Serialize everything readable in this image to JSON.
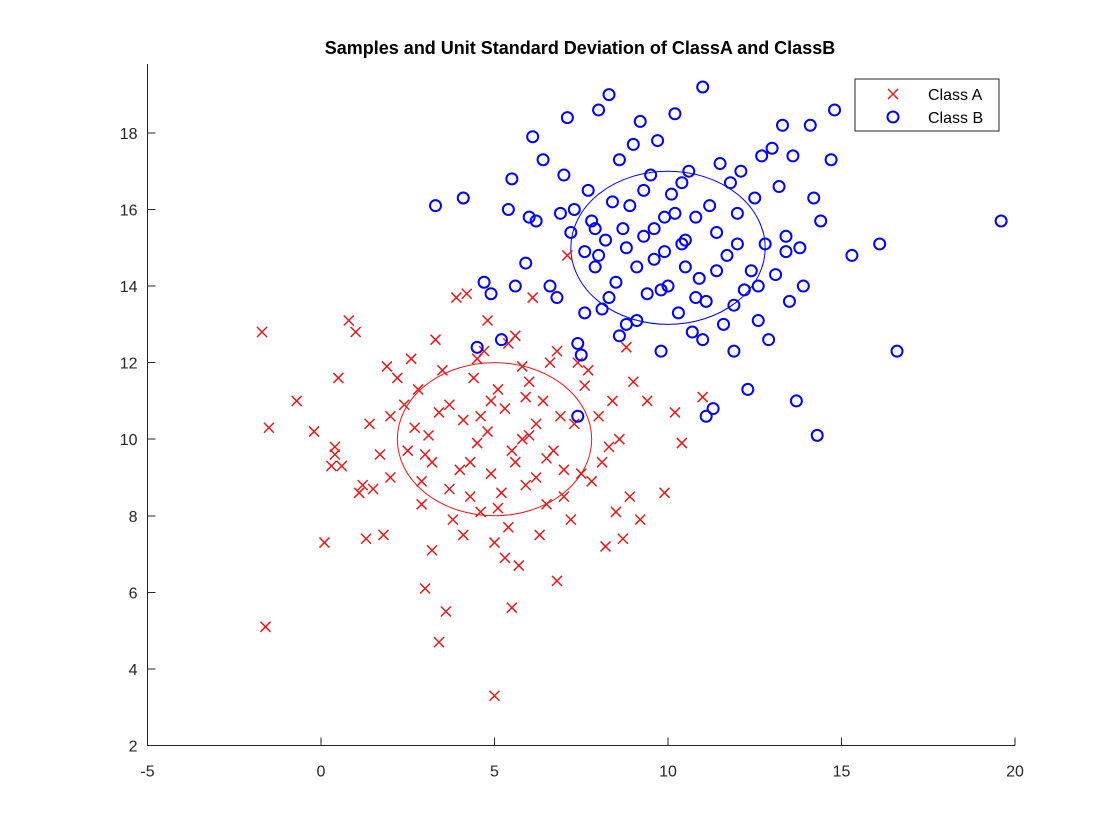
{
  "chart_data": {
    "type": "scatter",
    "title": "Samples and Unit Standard Deviation of ClassA and ClassB",
    "xlabel": "",
    "ylabel": "",
    "xlim": [
      -5,
      20
    ],
    "ylim": [
      2,
      19.8
    ],
    "xticks": [
      -5,
      0,
      5,
      10,
      15,
      20
    ],
    "yticks": [
      2,
      4,
      6,
      8,
      10,
      12,
      14,
      16,
      18
    ],
    "grid": false,
    "box": false,
    "legend": {
      "position": "top-right",
      "entries": [
        "Class A",
        "Class B"
      ]
    },
    "series": [
      {
        "name": "Class A",
        "marker": "x",
        "color": "#e41a1c",
        "points": [
          [
            -1.7,
            12.8
          ],
          [
            -1.6,
            5.1
          ],
          [
            -1.5,
            10.3
          ],
          [
            -0.7,
            11.0
          ],
          [
            -0.2,
            10.2
          ],
          [
            0.1,
            7.3
          ],
          [
            0.3,
            9.3
          ],
          [
            0.4,
            9.8
          ],
          [
            0.5,
            11.6
          ],
          [
            0.6,
            9.3
          ],
          [
            0.8,
            13.1
          ],
          [
            1.0,
            12.8
          ],
          [
            1.1,
            8.6
          ],
          [
            1.2,
            8.8
          ],
          [
            1.3,
            7.4
          ],
          [
            1.4,
            10.4
          ],
          [
            1.5,
            8.7
          ],
          [
            1.7,
            9.6
          ],
          [
            1.9,
            11.9
          ],
          [
            2.0,
            10.6
          ],
          [
            2.2,
            11.6
          ],
          [
            2.4,
            10.9
          ],
          [
            2.5,
            9.7
          ],
          [
            2.6,
            12.1
          ],
          [
            2.7,
            10.3
          ],
          [
            2.8,
            11.3
          ],
          [
            2.9,
            8.9
          ],
          [
            3.0,
            6.1
          ],
          [
            3.1,
            10.1
          ],
          [
            3.2,
            7.1
          ],
          [
            3.2,
            9.4
          ],
          [
            3.3,
            12.6
          ],
          [
            3.4,
            4.7
          ],
          [
            3.5,
            11.8
          ],
          [
            3.6,
            5.5
          ],
          [
            3.7,
            10.9
          ],
          [
            3.8,
            7.9
          ],
          [
            3.9,
            13.7
          ],
          [
            4.0,
            9.2
          ],
          [
            4.1,
            10.5
          ],
          [
            4.2,
            13.8
          ],
          [
            4.3,
            8.5
          ],
          [
            4.4,
            11.6
          ],
          [
            4.5,
            9.9
          ],
          [
            4.6,
            8.1
          ],
          [
            4.7,
            12.3
          ],
          [
            4.8,
            10.2
          ],
          [
            4.9,
            9.1
          ],
          [
            5.0,
            7.3
          ],
          [
            5.0,
            3.3
          ],
          [
            5.1,
            11.3
          ],
          [
            5.2,
            8.6
          ],
          [
            5.3,
            10.8
          ],
          [
            5.4,
            7.7
          ],
          [
            5.4,
            12.5
          ],
          [
            5.5,
            5.6
          ],
          [
            5.6,
            9.4
          ],
          [
            5.7,
            6.7
          ],
          [
            5.8,
            11.9
          ],
          [
            5.9,
            8.8
          ],
          [
            6.0,
            10.1
          ],
          [
            6.1,
            13.7
          ],
          [
            6.2,
            9.0
          ],
          [
            6.3,
            7.5
          ],
          [
            6.4,
            11.0
          ],
          [
            6.5,
            8.3
          ],
          [
            6.6,
            12.0
          ],
          [
            6.7,
            9.7
          ],
          [
            6.8,
            6.3
          ],
          [
            6.9,
            10.6
          ],
          [
            7.0,
            8.5
          ],
          [
            7.1,
            14.8
          ],
          [
            7.2,
            7.9
          ],
          [
            7.3,
            10.4
          ],
          [
            7.4,
            12.0
          ],
          [
            7.5,
            9.1
          ],
          [
            7.6,
            11.4
          ],
          [
            7.8,
            8.9
          ],
          [
            8.0,
            10.6
          ],
          [
            8.1,
            9.4
          ],
          [
            8.2,
            7.2
          ],
          [
            8.4,
            11.0
          ],
          [
            8.5,
            8.1
          ],
          [
            8.6,
            10.0
          ],
          [
            8.7,
            7.4
          ],
          [
            8.8,
            12.4
          ],
          [
            8.9,
            8.5
          ],
          [
            9.0,
            11.5
          ],
          [
            9.2,
            7.9
          ],
          [
            9.4,
            11.0
          ],
          [
            9.9,
            8.6
          ],
          [
            10.2,
            10.7
          ],
          [
            10.4,
            9.9
          ],
          [
            11.0,
            11.1
          ],
          [
            4.3,
            9.4
          ],
          [
            5.8,
            10.0
          ],
          [
            6.2,
            10.4
          ],
          [
            3.7,
            8.7
          ],
          [
            4.9,
            11.0
          ],
          [
            5.5,
            9.7
          ],
          [
            6.5,
            9.5
          ],
          [
            4.6,
            10.6
          ],
          [
            5.1,
            8.2
          ],
          [
            3.4,
            10.7
          ],
          [
            6.0,
            11.5
          ],
          [
            2.9,
            8.3
          ],
          [
            7.0,
            9.2
          ],
          [
            5.3,
            6.9
          ],
          [
            4.1,
            7.5
          ],
          [
            6.8,
            12.3
          ],
          [
            0.4,
            9.6
          ],
          [
            2.0,
            9.0
          ],
          [
            5.9,
            11.1
          ],
          [
            4.5,
            12.1
          ],
          [
            3.0,
            9.6
          ],
          [
            7.7,
            11.8
          ],
          [
            1.8,
            7.5
          ],
          [
            5.6,
            12.7
          ],
          [
            8.3,
            9.8
          ],
          [
            4.8,
            13.1
          ]
        ]
      },
      {
        "name": "Class B",
        "marker": "o",
        "color": "#0000ff",
        "points": [
          [
            3.3,
            16.1
          ],
          [
            4.1,
            16.3
          ],
          [
            4.5,
            12.4
          ],
          [
            4.7,
            14.1
          ],
          [
            4.9,
            13.8
          ],
          [
            5.2,
            12.6
          ],
          [
            5.4,
            16.0
          ],
          [
            5.5,
            16.8
          ],
          [
            5.6,
            14.0
          ],
          [
            5.9,
            14.6
          ],
          [
            6.0,
            15.8
          ],
          [
            6.1,
            17.9
          ],
          [
            6.2,
            15.7
          ],
          [
            6.4,
            17.3
          ],
          [
            6.6,
            14.0
          ],
          [
            6.8,
            13.7
          ],
          [
            6.9,
            15.9
          ],
          [
            7.0,
            16.9
          ],
          [
            7.1,
            18.4
          ],
          [
            7.2,
            15.4
          ],
          [
            7.3,
            16.0
          ],
          [
            7.4,
            12.5
          ],
          [
            7.5,
            12.2
          ],
          [
            7.6,
            14.9
          ],
          [
            7.7,
            16.5
          ],
          [
            7.8,
            15.7
          ],
          [
            7.9,
            14.5
          ],
          [
            8.0,
            18.6
          ],
          [
            8.1,
            13.4
          ],
          [
            8.2,
            15.2
          ],
          [
            8.3,
            19.0
          ],
          [
            8.4,
            16.2
          ],
          [
            8.5,
            14.1
          ],
          [
            8.6,
            17.3
          ],
          [
            8.7,
            15.5
          ],
          [
            8.8,
            13.0
          ],
          [
            8.9,
            16.1
          ],
          [
            9.0,
            17.7
          ],
          [
            9.1,
            14.5
          ],
          [
            9.2,
            18.3
          ],
          [
            9.3,
            15.3
          ],
          [
            9.4,
            13.8
          ],
          [
            9.5,
            16.9
          ],
          [
            9.6,
            14.7
          ],
          [
            9.7,
            17.8
          ],
          [
            9.8,
            12.3
          ],
          [
            9.9,
            15.8
          ],
          [
            10.0,
            14.0
          ],
          [
            10.1,
            16.4
          ],
          [
            10.2,
            18.5
          ],
          [
            10.3,
            13.3
          ],
          [
            10.4,
            15.1
          ],
          [
            10.5,
            14.5
          ],
          [
            10.6,
            17.0
          ],
          [
            10.7,
            12.8
          ],
          [
            10.8,
            15.8
          ],
          [
            10.9,
            14.2
          ],
          [
            11.0,
            19.2
          ],
          [
            11.1,
            13.6
          ],
          [
            11.2,
            16.1
          ],
          [
            11.3,
            10.8
          ],
          [
            11.4,
            15.4
          ],
          [
            11.5,
            17.2
          ],
          [
            11.6,
            13.0
          ],
          [
            11.7,
            14.8
          ],
          [
            11.8,
            16.7
          ],
          [
            11.9,
            12.3
          ],
          [
            12.0,
            15.1
          ],
          [
            12.1,
            17.0
          ],
          [
            12.2,
            13.9
          ],
          [
            12.3,
            11.3
          ],
          [
            12.4,
            14.4
          ],
          [
            12.5,
            16.3
          ],
          [
            12.6,
            13.1
          ],
          [
            12.7,
            17.4
          ],
          [
            12.8,
            15.1
          ],
          [
            12.9,
            12.6
          ],
          [
            13.0,
            17.6
          ],
          [
            13.1,
            14.3
          ],
          [
            13.2,
            16.6
          ],
          [
            13.3,
            18.2
          ],
          [
            13.4,
            14.9
          ],
          [
            13.5,
            13.6
          ],
          [
            13.6,
            17.4
          ],
          [
            13.7,
            11.0
          ],
          [
            13.8,
            15.0
          ],
          [
            13.9,
            14.0
          ],
          [
            14.1,
            18.2
          ],
          [
            14.2,
            16.3
          ],
          [
            14.3,
            10.1
          ],
          [
            14.4,
            15.7
          ],
          [
            14.7,
            17.3
          ],
          [
            14.8,
            18.6
          ],
          [
            15.3,
            14.8
          ],
          [
            16.1,
            15.1
          ],
          [
            16.6,
            12.3
          ],
          [
            19.6,
            15.7
          ],
          [
            7.4,
            10.6
          ],
          [
            11.1,
            10.6
          ],
          [
            8.6,
            12.7
          ],
          [
            9.3,
            16.5
          ],
          [
            10.5,
            15.2
          ],
          [
            8.0,
            14.8
          ],
          [
            9.8,
            13.9
          ],
          [
            11.4,
            14.4
          ],
          [
            10.2,
            15.9
          ],
          [
            8.8,
            15.0
          ],
          [
            12.0,
            15.9
          ],
          [
            9.1,
            13.1
          ],
          [
            10.8,
            13.7
          ],
          [
            7.9,
            15.5
          ],
          [
            11.9,
            13.5
          ],
          [
            9.6,
            15.5
          ],
          [
            10.4,
            16.7
          ],
          [
            8.3,
            13.7
          ],
          [
            12.6,
            14.0
          ],
          [
            11.0,
            12.6
          ],
          [
            9.9,
            14.9
          ],
          [
            7.6,
            13.3
          ],
          [
            13.4,
            15.3
          ]
        ]
      }
    ],
    "ellipses": [
      {
        "series": "Class A",
        "center": [
          5.0,
          10.0
        ],
        "rx": 2.8,
        "ry": 2.0,
        "color": "#e41a1c"
      },
      {
        "series": "Class B",
        "center": [
          10.0,
          15.0
        ],
        "rx": 2.8,
        "ry": 2.0,
        "color": "#0000ff"
      }
    ]
  }
}
